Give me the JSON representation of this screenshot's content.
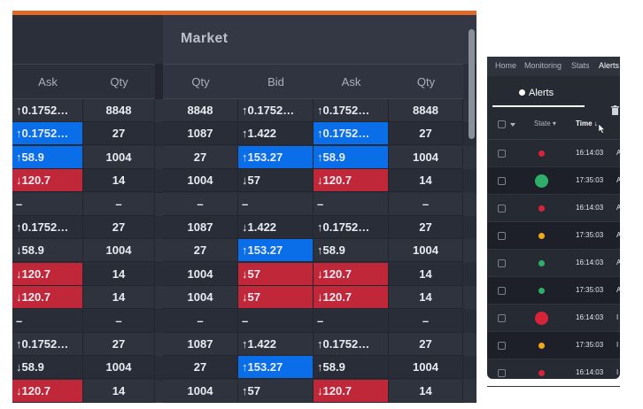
{
  "market": {
    "group_title": "Market",
    "columns": [
      "Ask",
      "Qty",
      "Qty",
      "Bid",
      "Ask",
      "Qty"
    ],
    "rows": [
      {
        "ask1": "↑0.1752…",
        "qty1": "8848",
        "qty2": "8848",
        "bid": "↑0.1752…",
        "ask2": "↑0.1752…",
        "qty3": "8848",
        "hl": [
          "",
          "",
          "",
          "",
          "",
          ""
        ]
      },
      {
        "ask1": "↑0.1752…",
        "qty1": "27",
        "qty2": "1087",
        "bid": "↑1.422",
        "ask2": "↑0.1752…",
        "qty3": "27",
        "hl": [
          "up",
          "",
          "",
          "",
          "up",
          ""
        ]
      },
      {
        "ask1": "↑58.9",
        "qty1": "1004",
        "qty2": "27",
        "bid": "↑153.27",
        "ask2": "↑58.9",
        "qty3": "1004",
        "hl": [
          "up",
          "",
          "",
          "up",
          "up",
          ""
        ]
      },
      {
        "ask1": "↓120.7",
        "qty1": "14",
        "qty2": "1004",
        "bid": "↓57",
        "ask2": "↓120.7",
        "qty3": "14",
        "hl": [
          "dn",
          "",
          "",
          "",
          "dn",
          ""
        ]
      },
      {
        "ask1": "–",
        "qty1": "–",
        "qty2": "–",
        "bid": "–",
        "ask2": "–",
        "qty3": "–",
        "hl": [
          "",
          "",
          "",
          "",
          "",
          ""
        ]
      },
      {
        "ask1": "↑0.1752…",
        "qty1": "27",
        "qty2": "1087",
        "bid": "↓1.422",
        "ask2": "↑0.1752…",
        "qty3": "27",
        "hl": [
          "",
          "",
          "",
          "",
          "",
          ""
        ]
      },
      {
        "ask1": "↓58.9",
        "qty1": "1004",
        "qty2": "27",
        "bid": "↑153.27",
        "ask2": "↑58.9",
        "qty3": "1004",
        "hl": [
          "",
          "",
          "",
          "up",
          "",
          ""
        ]
      },
      {
        "ask1": "↓120.7",
        "qty1": "14",
        "qty2": "1004",
        "bid": "↓57",
        "ask2": "↓120.7",
        "qty3": "14",
        "hl": [
          "dn",
          "",
          "",
          "dn",
          "dn",
          ""
        ]
      },
      {
        "ask1": "↓120.7",
        "qty1": "14",
        "qty2": "1004",
        "bid": "↓57",
        "ask2": "↓120.7",
        "qty3": "14",
        "hl": [
          "dn",
          "",
          "",
          "dn",
          "dn",
          ""
        ]
      },
      {
        "ask1": "–",
        "qty1": "–",
        "qty2": "–",
        "bid": "–",
        "ask2": "–",
        "qty3": "–",
        "hl": [
          "",
          "",
          "",
          "",
          "",
          ""
        ]
      },
      {
        "ask1": "↑0.1752…",
        "qty1": "27",
        "qty2": "1087",
        "bid": "↑1.422",
        "ask2": "↑0.1752…",
        "qty3": "27",
        "hl": [
          "",
          "",
          "",
          "",
          "",
          ""
        ]
      },
      {
        "ask1": "↓58.9",
        "qty1": "1004",
        "qty2": "27",
        "bid": "↑153.27",
        "ask2": "↑58.9",
        "qty3": "1004",
        "hl": [
          "",
          "",
          "",
          "up",
          "",
          ""
        ]
      },
      {
        "ask1": "↓120.7",
        "qty1": "14",
        "qty2": "1004",
        "bid": "↑57",
        "ask2": "↓120.7",
        "qty3": "14",
        "hl": [
          "dn",
          "",
          "",
          "",
          "dn",
          ""
        ]
      }
    ]
  },
  "alerts": {
    "nav": [
      "Home",
      "Monitoring",
      "Stats",
      "Alerts"
    ],
    "tab_label": "Alerts",
    "headers": {
      "state": "State",
      "time": "Time"
    },
    "rows": [
      {
        "state": "red",
        "ring": false,
        "time": "16:14:03",
        "text": "A"
      },
      {
        "state": "green",
        "ring": true,
        "time": "17:35:03",
        "text": "A"
      },
      {
        "state": "red",
        "ring": false,
        "time": "16:14:03",
        "text": "A"
      },
      {
        "state": "amber",
        "ring": false,
        "time": "17:35:03",
        "text": "A"
      },
      {
        "state": "green",
        "ring": false,
        "time": "16:14:03",
        "text": "A"
      },
      {
        "state": "green",
        "ring": false,
        "time": "17:35:03",
        "text": "A"
      },
      {
        "state": "red",
        "ring": true,
        "time": "16:14:03",
        "text": "I"
      },
      {
        "state": "amber",
        "ring": false,
        "time": "17:35:03",
        "text": "I"
      },
      {
        "state": "red",
        "ring": false,
        "time": "16:14:03",
        "text": "I"
      }
    ],
    "state_colors": {
      "red": "#d8233a",
      "green": "#2fae6a",
      "amber": "#f0a81c"
    }
  }
}
